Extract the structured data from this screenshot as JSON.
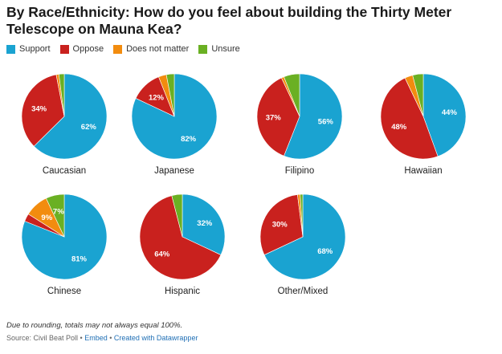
{
  "title": "By Race/Ethnicity: How do you feel about building the Thirty Meter Telescope on Mauna Kea?",
  "legend": [
    {
      "label": "Support",
      "color": "#1aa3d1"
    },
    {
      "label": "Oppose",
      "color": "#c9211e"
    },
    {
      "label": "Does not matter",
      "color": "#f28c0f"
    },
    {
      "label": "Unsure",
      "color": "#6ab023"
    }
  ],
  "chart_data": {
    "type": "pie",
    "categories": [
      "Support",
      "Oppose",
      "Does not matter",
      "Unsure"
    ],
    "colors": [
      "#1aa3d1",
      "#c9211e",
      "#f28c0f",
      "#6ab023"
    ],
    "pies": [
      {
        "name": "Caucasian",
        "values": [
          62,
          34,
          1,
          2
        ],
        "labels": [
          "62%",
          "34%",
          "",
          ""
        ]
      },
      {
        "name": "Japanese",
        "values": [
          82,
          12,
          3,
          3
        ],
        "labels": [
          "82%",
          "12%",
          "",
          ""
        ]
      },
      {
        "name": "Filipino",
        "values": [
          56,
          37,
          1,
          6
        ],
        "labels": [
          "56%",
          "37%",
          "",
          ""
        ]
      },
      {
        "name": "Hawaiian",
        "values": [
          44,
          48,
          3,
          4
        ],
        "labels": [
          "44%",
          "48%",
          "",
          ""
        ]
      },
      {
        "name": "Chinese",
        "values": [
          81,
          3,
          9,
          7
        ],
        "labels": [
          "81%",
          "",
          "9%",
          "7%"
        ]
      },
      {
        "name": "Hispanic",
        "values": [
          32,
          64,
          0,
          4
        ],
        "labels": [
          "32%",
          "64%",
          "",
          ""
        ]
      },
      {
        "name": "Other/Mixed",
        "values": [
          68,
          30,
          1,
          1
        ],
        "labels": [
          "68%",
          "30%",
          "",
          ""
        ]
      }
    ]
  },
  "footer": {
    "note": "Due to rounding, totals may not always equal 100%.",
    "source_prefix": "Source: Civil Beat Poll • ",
    "embed": "Embed",
    "separator": " • ",
    "created": "Created with Datawrapper"
  }
}
